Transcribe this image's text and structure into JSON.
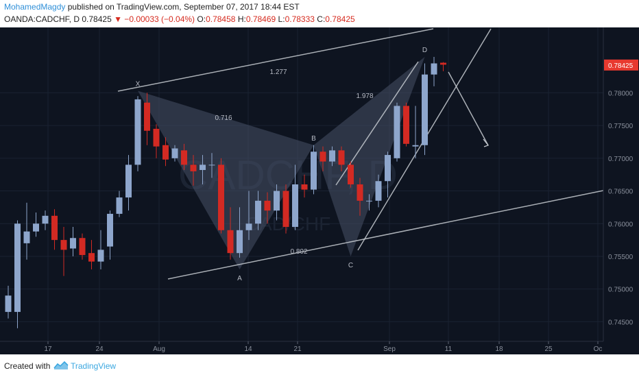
{
  "header": {
    "author": "MohamedMagdy",
    "published_text": "published on TradingView.com, September 07, 2017 18:44 EST",
    "symbol": "OANDA:CADCHF, D",
    "last": "0.78425",
    "change": "▼ −0.00033 (−0.04%)",
    "open_label": "O:",
    "open": "0.78458",
    "high_label": "H:",
    "high": "0.78469",
    "low_label": "L:",
    "low": "0.78333",
    "close_label": "C:",
    "close": "0.78425"
  },
  "footer": {
    "created_with": "Created with",
    "brand": "TradingView"
  },
  "colors": {
    "up": "#8ea6cc",
    "down": "#d32a23",
    "background": "#0e1420",
    "pattern": "#475066",
    "line": "#c7cbd1",
    "price_tag": "#e8392f"
  },
  "chart_data": {
    "type": "candlestick",
    "watermark_top": "CADCHF, D",
    "watermark_bottom": "CAD/CHF",
    "last_price": "0.78425",
    "ylim": [
      0.742,
      0.79
    ],
    "y_ticks": [
      "0.74500",
      "0.75000",
      "0.75500",
      "0.76000",
      "0.76500",
      "0.77000",
      "0.77500",
      "0.78000"
    ],
    "x_ticks": [
      "17",
      "24",
      "Aug",
      "14",
      "21",
      "Sep",
      "11",
      "18",
      "25",
      "Oc"
    ],
    "candles": [
      [
        0.7465,
        0.749,
        0.7455,
        0.7505
      ],
      [
        0.7465,
        0.76,
        0.744,
        0.7605
      ],
      [
        0.757,
        0.7588,
        0.7545,
        0.7632
      ],
      [
        0.7588,
        0.76,
        0.758,
        0.7617
      ],
      [
        0.76,
        0.7612,
        0.759,
        0.762
      ],
      [
        0.7612,
        0.7575,
        0.756,
        0.7622
      ],
      [
        0.7575,
        0.756,
        0.752,
        0.7595
      ],
      [
        0.7562,
        0.7578,
        0.755,
        0.7595
      ],
      [
        0.7578,
        0.7552,
        0.7545,
        0.7585
      ],
      [
        0.7555,
        0.7542,
        0.753,
        0.7575
      ],
      [
        0.7542,
        0.756,
        0.753,
        0.759
      ],
      [
        0.7565,
        0.7615,
        0.7545,
        0.762
      ],
      [
        0.7615,
        0.764,
        0.761,
        0.765
      ],
      [
        0.764,
        0.769,
        0.762,
        0.7705
      ],
      [
        0.769,
        0.779,
        0.768,
        0.7795
      ],
      [
        0.7785,
        0.7742,
        0.772,
        0.78
      ],
      [
        0.7745,
        0.7718,
        0.77,
        0.7752
      ],
      [
        0.772,
        0.7698,
        0.7688,
        0.7732
      ],
      [
        0.77,
        0.7715,
        0.7695,
        0.772
      ],
      [
        0.7712,
        0.769,
        0.7682,
        0.7722
      ],
      [
        0.769,
        0.768,
        0.7658,
        0.7705
      ],
      [
        0.7682,
        0.769,
        0.766,
        0.7705
      ],
      [
        0.769,
        0.769,
        0.767,
        0.7708
      ],
      [
        0.769,
        0.759,
        0.7585,
        0.77
      ],
      [
        0.759,
        0.7555,
        0.7545,
        0.7625
      ],
      [
        0.7555,
        0.759,
        0.7548,
        0.7625
      ],
      [
        0.759,
        0.76,
        0.7575,
        0.765
      ],
      [
        0.76,
        0.7635,
        0.759,
        0.765
      ],
      [
        0.7635,
        0.762,
        0.76,
        0.7648
      ],
      [
        0.762,
        0.765,
        0.7605,
        0.766
      ],
      [
        0.765,
        0.7595,
        0.7585,
        0.766
      ],
      [
        0.7595,
        0.766,
        0.759,
        0.769
      ],
      [
        0.766,
        0.7652,
        0.764,
        0.7675
      ],
      [
        0.7652,
        0.771,
        0.7645,
        0.772
      ],
      [
        0.771,
        0.7695,
        0.768,
        0.7718
      ],
      [
        0.7695,
        0.7712,
        0.7688,
        0.7718
      ],
      [
        0.7712,
        0.769,
        0.768,
        0.7718
      ],
      [
        0.769,
        0.766,
        0.7655,
        0.7695
      ],
      [
        0.766,
        0.7635,
        0.7612,
        0.767
      ],
      [
        0.7635,
        0.7635,
        0.762,
        0.7645
      ],
      [
        0.7635,
        0.7665,
        0.7625,
        0.7675
      ],
      [
        0.7665,
        0.7705,
        0.764,
        0.771
      ],
      [
        0.77,
        0.778,
        0.7695,
        0.7785
      ],
      [
        0.778,
        0.7722,
        0.7718,
        0.7785
      ],
      [
        0.7718,
        0.772,
        0.77,
        0.778
      ],
      [
        0.772,
        0.7828,
        0.7705,
        0.7845
      ],
      [
        0.7828,
        0.7845,
        0.781,
        0.7855
      ],
      [
        0.7846,
        0.7843,
        0.7833,
        0.7847
      ]
    ],
    "pattern_points": [
      {
        "label": "X",
        "value": 0.7803
      },
      {
        "label": "A",
        "value": 0.753
      },
      {
        "label": "B",
        "value": 0.772
      },
      {
        "label": "C",
        "value": 0.755
      },
      {
        "label": "D",
        "value": 0.7855
      }
    ],
    "ratios": [
      "1.277",
      "0.716",
      "1.978",
      "0.802"
    ]
  }
}
